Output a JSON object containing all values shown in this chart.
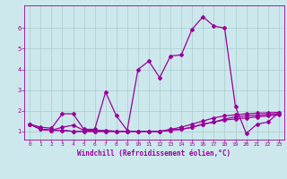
{
  "xlabel": "Windchill (Refroidissement éolien,°C)",
  "background_color": "#cce8ec",
  "grid_color": "#aacccc",
  "line_color": "#990099",
  "xlim": [
    -0.5,
    23.5
  ],
  "ylim": [
    0.6,
    7.1
  ],
  "xticks": [
    0,
    1,
    2,
    3,
    4,
    5,
    6,
    7,
    8,
    9,
    10,
    11,
    12,
    13,
    14,
    15,
    16,
    17,
    18,
    19,
    20,
    21,
    22,
    23
  ],
  "yticks": [
    1,
    2,
    3,
    4,
    5,
    6
  ],
  "lines": [
    {
      "x": [
        0,
        1,
        2,
        3,
        4,
        5,
        6,
        7,
        8,
        9,
        10,
        11,
        12,
        13,
        14,
        15,
        16,
        17,
        18,
        19,
        20,
        21,
        22,
        23
      ],
      "y": [
        1.35,
        1.2,
        1.15,
        1.85,
        1.85,
        1.1,
        1.1,
        2.9,
        1.75,
        1.05,
        4.0,
        4.4,
        3.6,
        4.65,
        4.7,
        5.95,
        6.55,
        6.1,
        6.0,
        2.2,
        0.9,
        1.35,
        1.45,
        1.9
      ]
    },
    {
      "x": [
        0,
        1,
        2,
        3,
        4,
        5,
        6,
        7,
        8,
        9,
        10,
        11,
        12,
        13,
        14,
        15,
        16,
        17,
        18,
        19,
        20,
        21,
        22,
        23
      ],
      "y": [
        1.35,
        1.1,
        1.05,
        1.05,
        1.0,
        1.0,
        1.0,
        1.0,
        1.0,
        1.0,
        1.0,
        1.0,
        1.0,
        1.05,
        1.1,
        1.2,
        1.35,
        1.45,
        1.55,
        1.6,
        1.65,
        1.7,
        1.75,
        1.8
      ]
    },
    {
      "x": [
        0,
        1,
        2,
        3,
        4,
        5,
        6,
        7,
        8,
        9,
        10,
        11,
        12,
        13,
        14,
        15,
        16,
        17,
        18,
        19,
        20,
        21,
        22,
        23
      ],
      "y": [
        1.35,
        1.1,
        1.05,
        1.05,
        1.0,
        1.0,
        1.0,
        1.0,
        1.0,
        1.0,
        1.0,
        1.0,
        1.0,
        1.1,
        1.2,
        1.35,
        1.5,
        1.65,
        1.75,
        1.8,
        1.85,
        1.88,
        1.9,
        1.92
      ]
    },
    {
      "x": [
        0,
        1,
        2,
        3,
        4,
        5,
        6,
        7,
        8,
        9,
        10,
        11,
        12,
        13,
        14,
        15,
        16,
        17,
        18,
        19,
        20,
        21,
        22,
        23
      ],
      "y": [
        1.35,
        1.1,
        1.05,
        1.2,
        1.3,
        1.05,
        1.05,
        1.05,
        1.0,
        1.0,
        1.0,
        1.0,
        1.0,
        1.05,
        1.1,
        1.2,
        1.35,
        1.45,
        1.6,
        1.7,
        1.75,
        1.78,
        1.82,
        1.86
      ]
    }
  ],
  "marker": "D",
  "markersize": 2,
  "linewidth": 0.9
}
